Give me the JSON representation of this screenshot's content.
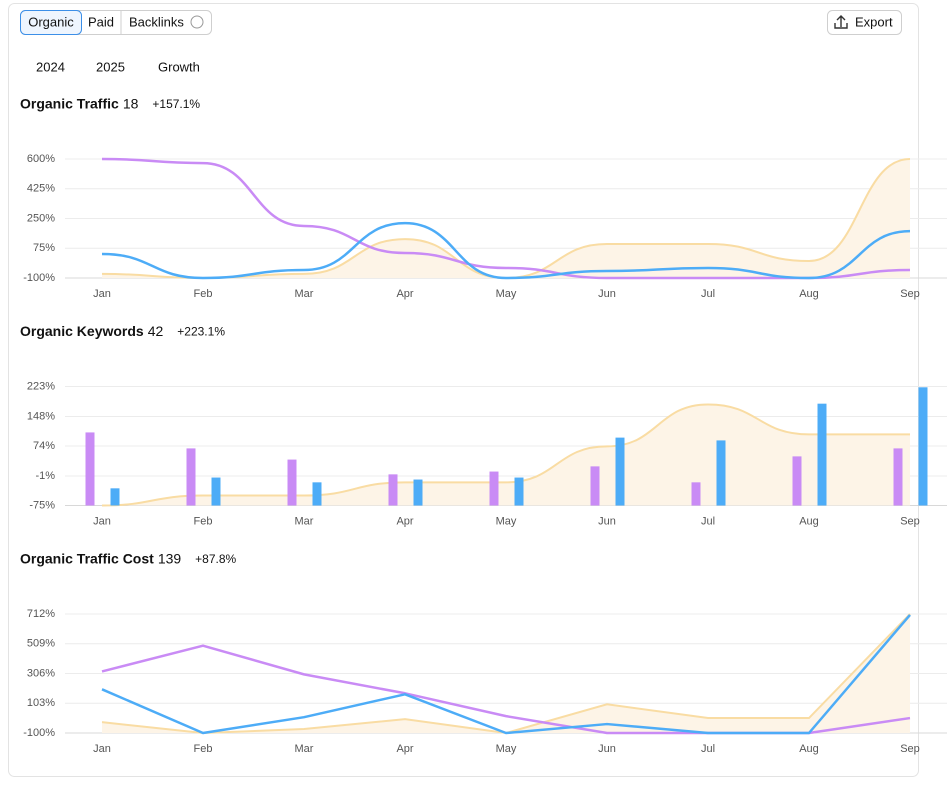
{
  "tabs": [
    "Organic",
    "Paid",
    "Backlinks"
  ],
  "export": "Export",
  "chart_data": [
    {
      "type": "line",
      "title": "Organic Traffic",
      "total": 18,
      "change": "+157.1%",
      "smooth": true,
      "grid": true,
      "categories": [
        "Jan",
        "Feb",
        "Mar",
        "Apr",
        "May",
        "Jun",
        "Jul",
        "Aug",
        "Sep"
      ],
      "ylim": [
        -100,
        600
      ],
      "yticks": [
        {
          "value": -100,
          "label": "-100%"
        },
        {
          "value": 75,
          "label": "75%"
        },
        {
          "value": 250,
          "label": "250%"
        },
        {
          "value": 425,
          "label": "425%"
        },
        {
          "value": 600,
          "label": "600%"
        }
      ],
      "series": [
        {
          "name": "2024",
          "type": "line",
          "color": "#c98bf5",
          "values": [
            600,
            576,
            206,
            47,
            -41,
            -100,
            -100,
            -100,
            -53
          ]
        },
        {
          "name": "2025",
          "type": "line",
          "color": "#4dacf7",
          "values": [
            41,
            -100,
            -53,
            223,
            -100,
            -59,
            -41,
            -100,
            176
          ]
        },
        {
          "name": "Growth",
          "type": "area",
          "color": "#f9dca3",
          "values": [
            -76,
            -100,
            -76,
            129,
            -100,
            100,
            100,
            0,
            600
          ]
        }
      ]
    },
    {
      "type": "bar",
      "title": "Organic Keywords",
      "total": 42,
      "change": "+223.1%",
      "smooth": true,
      "grid": true,
      "categories": [
        "Jan",
        "Feb",
        "Mar",
        "Apr",
        "May",
        "Jun",
        "Jul",
        "Aug",
        "Sep"
      ],
      "ylim": [
        -75,
        223
      ],
      "yticks": [
        {
          "value": -75,
          "label": "-75%"
        },
        {
          "value": -1,
          "label": "-1%"
        },
        {
          "value": 74,
          "label": "74%"
        },
        {
          "value": 148,
          "label": "148%"
        },
        {
          "value": 223,
          "label": "223%"
        }
      ],
      "series": [
        {
          "name": "2024",
          "type": "bar",
          "color": "#c98bf5",
          "values": [
            108,
            68,
            40,
            3,
            10,
            23,
            -17,
            48,
            68
          ]
        },
        {
          "name": "2025",
          "type": "bar",
          "color": "#4dacf7",
          "values": [
            -32,
            -5,
            -17,
            -10,
            -5,
            95,
            88,
            180,
            221
          ]
        },
        {
          "name": "Growth",
          "type": "area",
          "color": "#f9dca3",
          "values": [
            -75,
            -50,
            -50,
            -17,
            -17,
            73,
            178,
            103,
            103
          ]
        }
      ]
    },
    {
      "type": "line",
      "title": "Organic Traffic Cost",
      "total": 139,
      "change": "+87.8%",
      "smooth": false,
      "grid": true,
      "categories": [
        "Jan",
        "Feb",
        "Mar",
        "Apr",
        "May",
        "Jun",
        "Jul",
        "Aug",
        "Sep"
      ],
      "ylim": [
        -100,
        712
      ],
      "yticks": [
        {
          "value": -100,
          "label": "-100%"
        },
        {
          "value": 103,
          "label": "103%"
        },
        {
          "value": 306,
          "label": "306%"
        },
        {
          "value": 509,
          "label": "509%"
        },
        {
          "value": 712,
          "label": "712%"
        }
      ],
      "series": [
        {
          "name": "2024",
          "type": "line",
          "color": "#c98bf5",
          "values": [
            320,
            496,
            300,
            171,
            15,
            -100,
            -100,
            -100,
            2
          ]
        },
        {
          "name": "2025",
          "type": "line",
          "color": "#4dacf7",
          "values": [
            198,
            -100,
            8,
            164,
            -100,
            -39,
            -100,
            -100,
            706
          ]
        },
        {
          "name": "Growth",
          "type": "area",
          "color": "#f9dca3",
          "values": [
            -26,
            -100,
            -73,
            -5,
            -100,
            96,
            2,
            2,
            712
          ]
        }
      ]
    }
  ]
}
